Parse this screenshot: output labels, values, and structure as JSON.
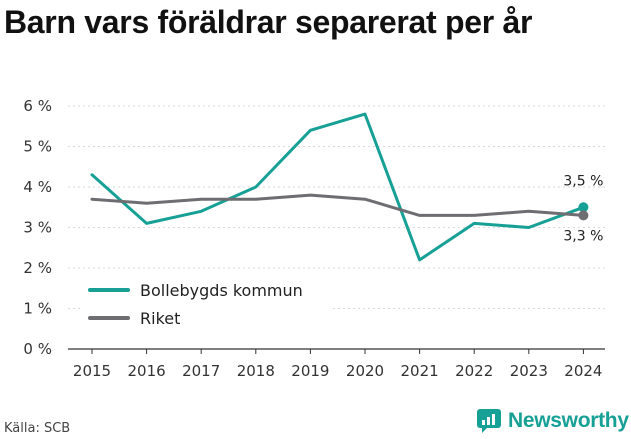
{
  "title": "Barn vars föräldrar separerat per år",
  "source": "Källa: SCB",
  "brand": {
    "name": "Newsworthy",
    "icon": "newsworthy-logo-icon",
    "color": "#17a096"
  },
  "chart_data": {
    "type": "line",
    "title": "Barn vars föräldrar separerat per år",
    "x": [
      "2015",
      "2016",
      "2017",
      "2018",
      "2019",
      "2020",
      "2021",
      "2022",
      "2023",
      "2024"
    ],
    "ylim": [
      0,
      6
    ],
    "yticks": [
      "0 %",
      "1 %",
      "2 %",
      "3 %",
      "4 %",
      "5 %",
      "6 %"
    ],
    "grid": true,
    "legend": "bottom-left",
    "series": [
      {
        "name": "Bollebygds kommun",
        "color": "#17a096",
        "values": [
          4.3,
          3.1,
          3.4,
          4.0,
          5.4,
          5.8,
          2.2,
          3.1,
          3.0,
          3.5
        ],
        "end_label": "3,5 %"
      },
      {
        "name": "Riket",
        "color": "#6e6d72",
        "values": [
          3.7,
          3.6,
          3.7,
          3.7,
          3.8,
          3.7,
          3.3,
          3.3,
          3.4,
          3.3
        ],
        "end_label": "3,3 %"
      }
    ]
  }
}
